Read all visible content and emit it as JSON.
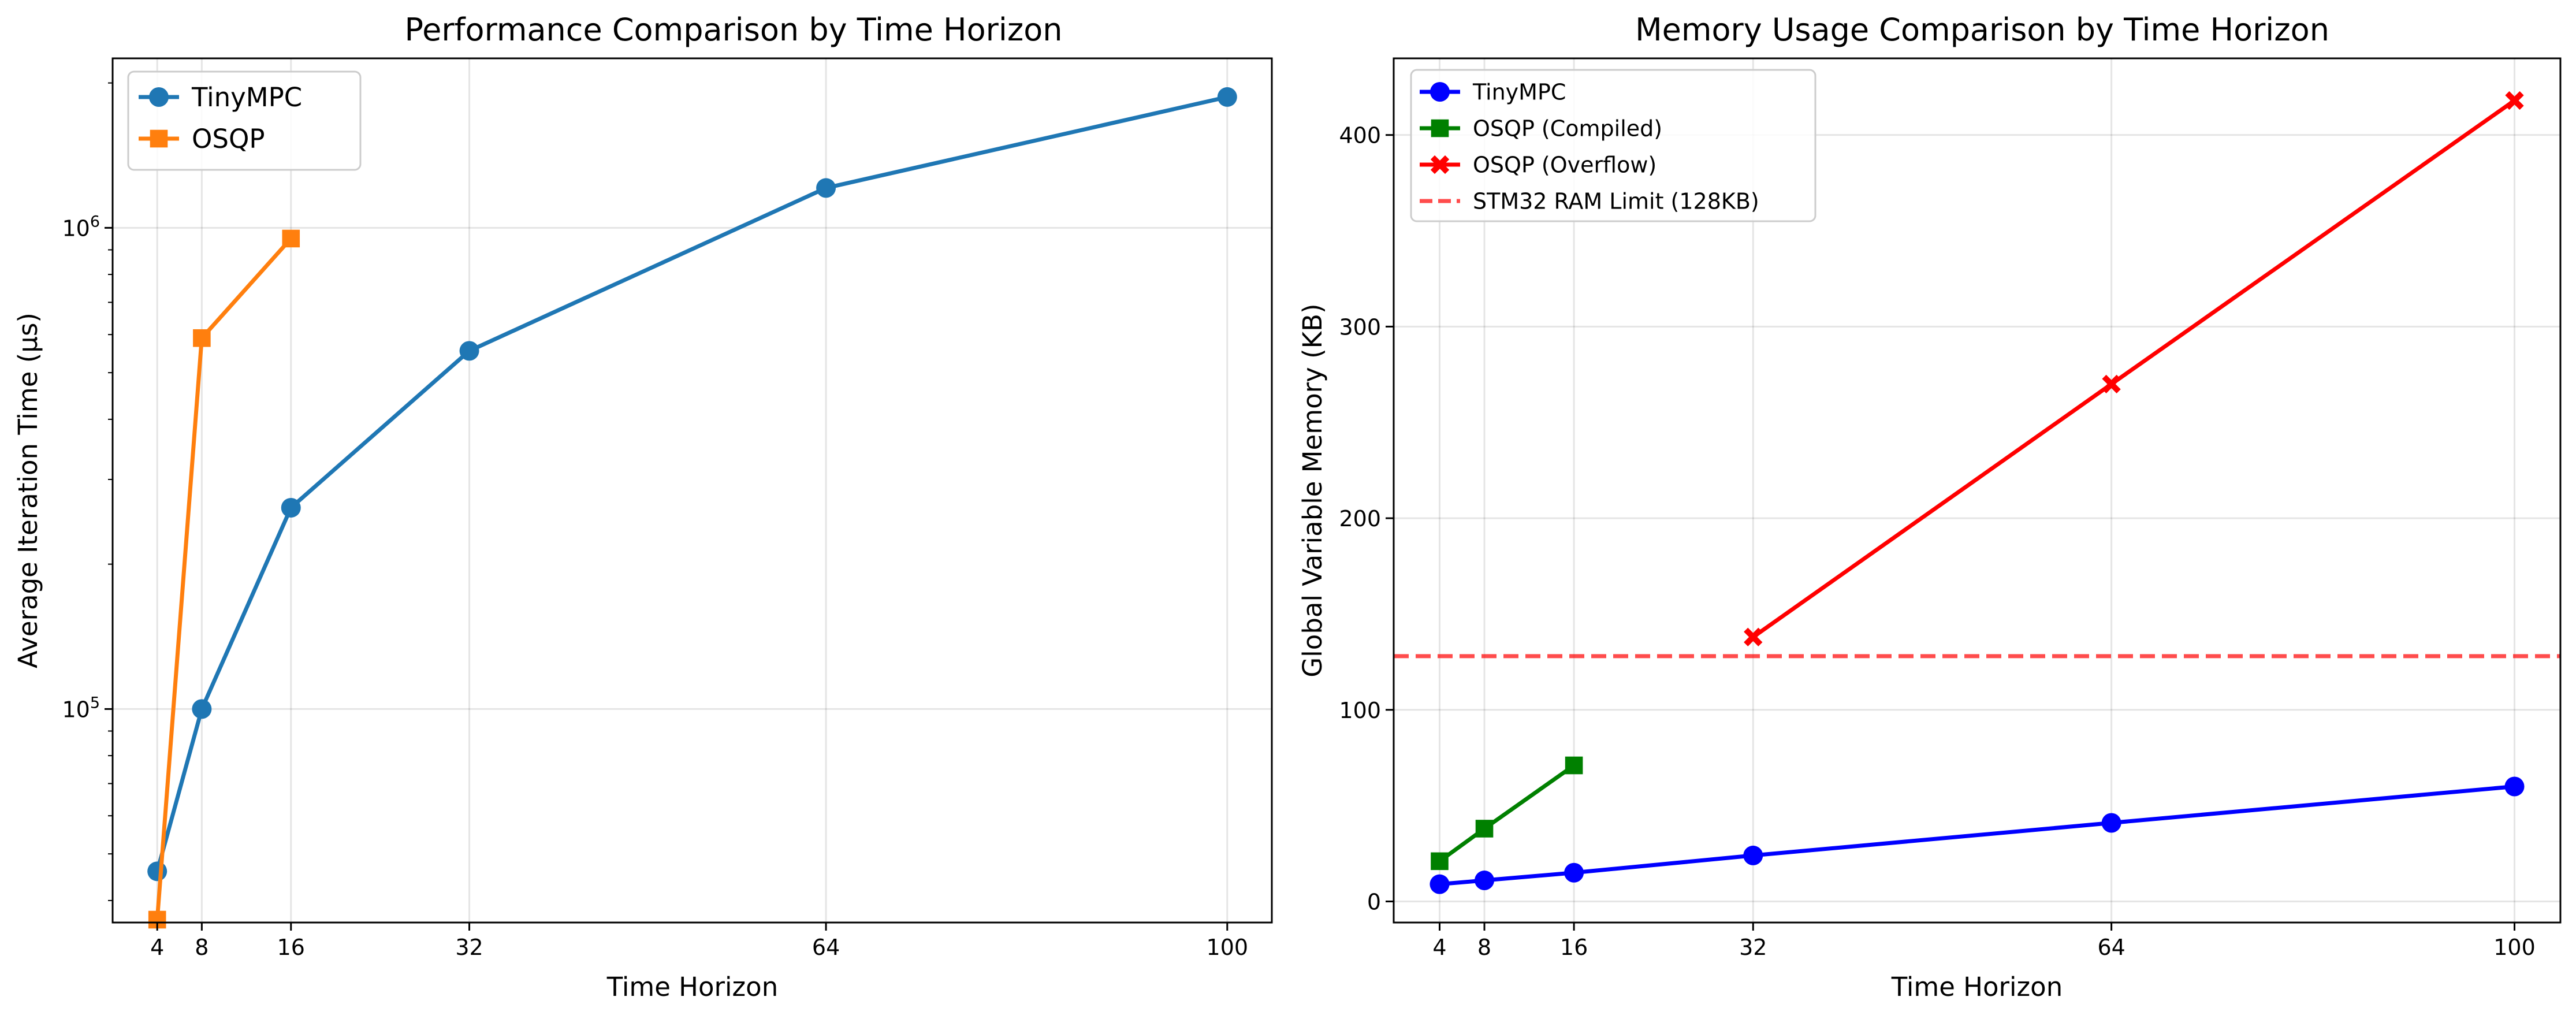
{
  "colors": {
    "tinympc_left": "#1f77b4",
    "osqp_left": "#ff7f0e",
    "tinympc_right": "#0000ff",
    "osqp_compiled": "#008000",
    "osqp_overflow": "#ff0000",
    "ram_limit": "#ff0000"
  },
  "chart_data": [
    {
      "type": "line",
      "title": "Performance Comparison by Time Horizon",
      "xlabel": "Time Horizon",
      "ylabel": "Average Iteration Time (µs)",
      "yscale": "log",
      "xlim": [
        0,
        104
      ],
      "ylim": [
        36000,
        2250000
      ],
      "xticks": [
        4,
        8,
        16,
        32,
        64,
        100
      ],
      "yticks": [
        {
          "value": 100000,
          "base": "10",
          "exp": "5"
        },
        {
          "value": 1000000,
          "base": "10",
          "exp": "6"
        }
      ],
      "grid": true,
      "legend": "top-left",
      "series": [
        {
          "name": "TinyMPC",
          "color": "#1f77b4",
          "marker": "circle",
          "x": [
            4,
            8,
            16,
            32,
            64,
            100
          ],
          "y": [
            46000,
            100000,
            262000,
            555000,
            1210000,
            1870000
          ]
        },
        {
          "name": "OSQP",
          "color": "#ff7f0e",
          "marker": "square",
          "x": [
            4,
            8,
            16
          ],
          "y": [
            36500,
            590000,
            950000
          ]
        }
      ]
    },
    {
      "type": "line",
      "title": "Memory Usage Comparison by Time Horizon",
      "xlabel": "Time Horizon",
      "ylabel": "Global Variable Memory (KB)",
      "xlim": [
        -0.1,
        104.1
      ],
      "ylim": [
        -11,
        440
      ],
      "xticks": [
        4,
        8,
        16,
        32,
        64,
        100
      ],
      "yticks": [
        0,
        100,
        200,
        300,
        400
      ],
      "grid": true,
      "legend": "top-left",
      "series": [
        {
          "name": "TinyMPC",
          "color": "#0000ff",
          "marker": "circle",
          "x": [
            4,
            8,
            16,
            32,
            64,
            100
          ],
          "y": [
            9,
            11,
            15,
            24,
            41,
            60
          ]
        },
        {
          "name": "OSQP (Compiled)",
          "color": "#008000",
          "marker": "square",
          "x": [
            4,
            8,
            16
          ],
          "y": [
            21,
            38,
            71
          ]
        },
        {
          "name": "OSQP (Overflow)",
          "color": "#ff0000",
          "marker": "x",
          "x": [
            32,
            64,
            100
          ],
          "y": [
            138,
            270,
            418
          ]
        }
      ],
      "hlines": [
        {
          "name": "STM32 RAM Limit (128KB)",
          "y": 128,
          "color": "#ff0000",
          "style": "dashed"
        }
      ]
    }
  ]
}
